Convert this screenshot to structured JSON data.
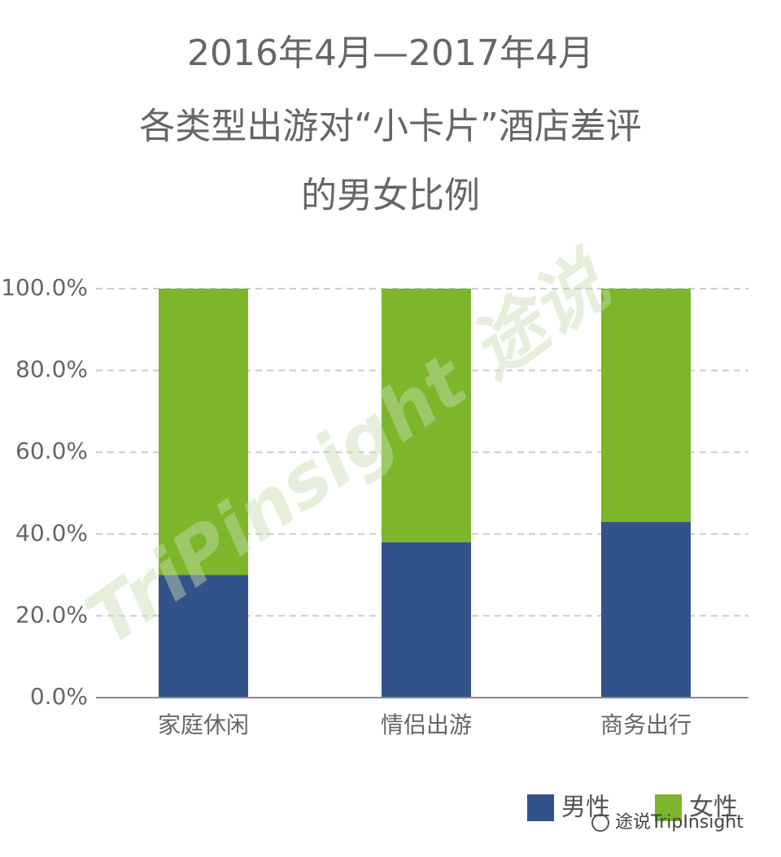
{
  "chart_data": {
    "type": "stacked_bar",
    "title": [
      "2016年4月—2017年4月",
      "各类型出游对“小卡片”酒店差评",
      "的男女比例"
    ],
    "categories": [
      "家庭休闲",
      "情侣出游",
      "商务出行"
    ],
    "series": [
      {
        "name": "男性",
        "color": "#34528a",
        "values": [
          30,
          38,
          43
        ]
      },
      {
        "name": "女性",
        "color": "#7db52b",
        "values": [
          70,
          62,
          57
        ]
      }
    ],
    "ylim": [
      0,
      100
    ],
    "yticks": [
      {
        "value": 0,
        "label": "0.0%"
      },
      {
        "value": 20,
        "label": "20.0%"
      },
      {
        "value": 40,
        "label": "40.0%"
      },
      {
        "value": 60,
        "label": "60.0%"
      },
      {
        "value": 80,
        "label": "80.0%"
      },
      {
        "value": 100,
        "label": "100.0%"
      }
    ],
    "grid": true,
    "legend": "bottom-right",
    "watermark": "TriPinsight 途说",
    "footer": "途说TripInsight"
  }
}
